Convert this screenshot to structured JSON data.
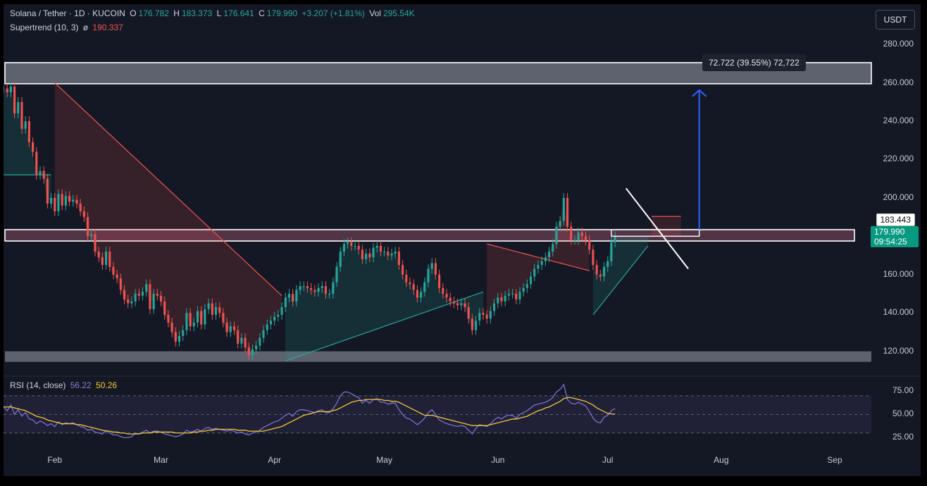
{
  "header": {
    "symbol": "Solana / Tether · 1D · KUCOIN",
    "o_label": "O",
    "o_val": "176.782",
    "h_label": "H",
    "h_val": "183.373",
    "l_label": "L",
    "l_val": "176.641",
    "c_label": "C",
    "c_val": "179.990",
    "change": "+3.207 (+1.81%)",
    "vol_label": "Vol",
    "vol_val": "295.54K",
    "indicator": "Supertrend (10, 3)",
    "indicator_icon": "eye-slash-icon",
    "indicator_val": "190.337"
  },
  "currency_button": "USDT",
  "measure_label": "72.722 (39.55%) 72,722",
  "price_tags": {
    "resistance": "183.443",
    "last": "179.990",
    "countdown": "09:54:25"
  },
  "rsi_legend": {
    "name": "RSI (14, close)",
    "rsi": "56.22",
    "ma": "50.26"
  },
  "colors": {
    "up": "#26a69a",
    "down": "#ef5350",
    "rsi": "#7e6fd0",
    "rsi_ma": "#f0c93a",
    "measure_arrow": "#2962ff",
    "background": "#141824"
  },
  "chart_data": [
    {
      "type": "candlestick",
      "title": "Solana / Tether · 1D · KUCOIN",
      "y_ticks": [
        "280.000",
        "260.000",
        "240.000",
        "220.000",
        "200.000",
        "160.000",
        "140.000",
        "120.000"
      ],
      "x_ticks": [
        "Feb",
        "Mar",
        "Apr",
        "May",
        "Jun",
        "Jul",
        "Aug",
        "Sep"
      ],
      "ylim": [
        110,
        287
      ],
      "x_range_days": [
        0,
        237
      ],
      "month_start_days": [
        14,
        43,
        74,
        104,
        135,
        165,
        196,
        227
      ],
      "zones": [
        {
          "name": "resistance-zone",
          "y_low": 259.5,
          "y_high": 270.5,
          "color": "#9aa0ab"
        },
        {
          "name": "support-zone",
          "y_low": 114.5,
          "y_high": 120,
          "color": "#9aa0ab"
        },
        {
          "name": "pivot-band",
          "y_low": 177.5,
          "y_high": 183.4,
          "color": "#c56a8a"
        }
      ],
      "closes": [
        257,
        255,
        258,
        244,
        250,
        236,
        240,
        229,
        224,
        212,
        214,
        210,
        197,
        200,
        193,
        202,
        196,
        201,
        198,
        199,
        197,
        193,
        190,
        180,
        181,
        172,
        169,
        165,
        172,
        164,
        160,
        158,
        152,
        147,
        145,
        146,
        150,
        149,
        151,
        155,
        142,
        150,
        149,
        146,
        139,
        135,
        130,
        125,
        128,
        131,
        140,
        133,
        135,
        141,
        134,
        142,
        145,
        139,
        143,
        140,
        135,
        130,
        133,
        131,
        124,
        127,
        122,
        118,
        121,
        123,
        127,
        131,
        134,
        136,
        138,
        139,
        143,
        148,
        150,
        146,
        152,
        154,
        154,
        153,
        152,
        151,
        153,
        154,
        150,
        150,
        156,
        164,
        172,
        176,
        177,
        175,
        175,
        173,
        168,
        171,
        169,
        174,
        175,
        172,
        172,
        170,
        171,
        172,
        165,
        160,
        156,
        155,
        152,
        148,
        151,
        156,
        163,
        166,
        160,
        153,
        150,
        148,
        146,
        145,
        144,
        145,
        143,
        137,
        131,
        136,
        140,
        139,
        137,
        141,
        145,
        148,
        146,
        149,
        150,
        150,
        147,
        151,
        153,
        155,
        159,
        163,
        165,
        167,
        169,
        172,
        176,
        185,
        188,
        200,
        185,
        178,
        178,
        182,
        180,
        178,
        173,
        165,
        160,
        159,
        164,
        167,
        176.782,
        179.99
      ],
      "supertrend": [
        {
          "trend": "up",
          "from_day": 0,
          "to_day": 13,
          "value": 212
        },
        {
          "trend": "down",
          "from_day": 14,
          "to_day": 76,
          "value_start": 260,
          "value_end": 149
        },
        {
          "trend": "up",
          "from_day": 77,
          "to_day": 131,
          "value_start": 115,
          "value_end": 151
        },
        {
          "trend": "down",
          "from_day": 132,
          "to_day": 160,
          "value_start": 176,
          "value_end": 162
        },
        {
          "trend": "up",
          "from_day": 161,
          "to_day": 176,
          "value_start": 139,
          "value_end": 175
        },
        {
          "trend": "down",
          "from_day": 177,
          "to_day": 185,
          "value": 190.337
        }
      ],
      "trendline": {
        "from": [
          170,
          205
        ],
        "to": [
          187,
          163
        ],
        "color": "#ffffff"
      },
      "measure": {
        "from_price": 183.443,
        "to_price": 256.165,
        "change": 72.722,
        "percent": 39.55
      }
    },
    {
      "type": "line",
      "title": "RSI (14, close)",
      "y_ticks": [
        "75.00",
        "50.00",
        "25.00"
      ],
      "ylim": [
        20,
        82
      ],
      "levels": [
        70,
        50,
        30
      ],
      "series": [
        {
          "name": "RSI",
          "color": "#7e6fd0",
          "values": [
            58,
            54,
            60,
            50,
            55,
            48,
            52,
            45,
            44,
            40,
            43,
            41,
            38,
            40,
            37,
            42,
            39,
            41,
            40,
            41,
            39,
            37,
            36,
            33,
            34,
            31,
            30,
            29,
            33,
            30,
            28,
            28,
            26,
            25,
            25,
            26,
            30,
            29,
            31,
            33,
            30,
            32,
            32,
            31,
            29,
            28,
            27,
            26,
            27,
            29,
            33,
            31,
            32,
            34,
            32,
            35,
            36,
            34,
            35,
            34,
            33,
            32,
            33,
            32,
            30,
            31,
            29,
            28,
            30,
            31,
            33,
            36,
            38,
            40,
            42,
            43,
            46,
            49,
            51,
            48,
            53,
            55,
            55,
            54,
            53,
            52,
            54,
            55,
            52,
            52,
            56,
            62,
            70,
            74,
            74,
            72,
            70,
            68,
            62,
            65,
            62,
            66,
            67,
            63,
            63,
            61,
            62,
            62,
            55,
            50,
            46,
            45,
            42,
            39,
            42,
            46,
            52,
            55,
            50,
            44,
            42,
            40,
            39,
            38,
            37,
            38,
            37,
            33,
            29,
            35,
            39,
            38,
            37,
            40,
            44,
            47,
            45,
            48,
            49,
            49,
            46,
            50,
            52,
            54,
            57,
            60,
            61,
            62,
            63,
            65,
            68,
            74,
            77,
            82,
            66,
            62,
            61,
            63,
            61,
            59,
            53,
            46,
            42,
            41,
            47,
            49,
            54,
            56.22
          ]
        },
        {
          "name": "MA",
          "color": "#f0c93a",
          "values": [
            58,
            58,
            58,
            57,
            56,
            55,
            54,
            52,
            50,
            48,
            47,
            46,
            44,
            43,
            42,
            41,
            40,
            40,
            40,
            40,
            39,
            39,
            38,
            37,
            36,
            35,
            34,
            33,
            32,
            32,
            31,
            31,
            30,
            30,
            29,
            29,
            29,
            29,
            30,
            30,
            30,
            31,
            31,
            31,
            31,
            31,
            31,
            30,
            30,
            30,
            30,
            30,
            31,
            31,
            32,
            32,
            33,
            33,
            34,
            34,
            34,
            34,
            34,
            34,
            33,
            33,
            33,
            32,
            32,
            32,
            32,
            32,
            33,
            34,
            35,
            36,
            37,
            39,
            41,
            43,
            45,
            47,
            49,
            50,
            51,
            52,
            53,
            53,
            53,
            53,
            54,
            55,
            57,
            59,
            61,
            63,
            64,
            65,
            65,
            66,
            66,
            66,
            66,
            66,
            65,
            65,
            64,
            64,
            63,
            61,
            59,
            57,
            55,
            53,
            51,
            49,
            49,
            49,
            48,
            47,
            46,
            45,
            44,
            43,
            42,
            41,
            40,
            39,
            38,
            38,
            38,
            38,
            38,
            39,
            40,
            41,
            42,
            43,
            44,
            45,
            45,
            46,
            47,
            48,
            50,
            52,
            54,
            55,
            57,
            58,
            60,
            62,
            64,
            67,
            68,
            68,
            67,
            66,
            65,
            64,
            62,
            60,
            57,
            55,
            53,
            51,
            50.5,
            50.26
          ]
        }
      ]
    }
  ]
}
